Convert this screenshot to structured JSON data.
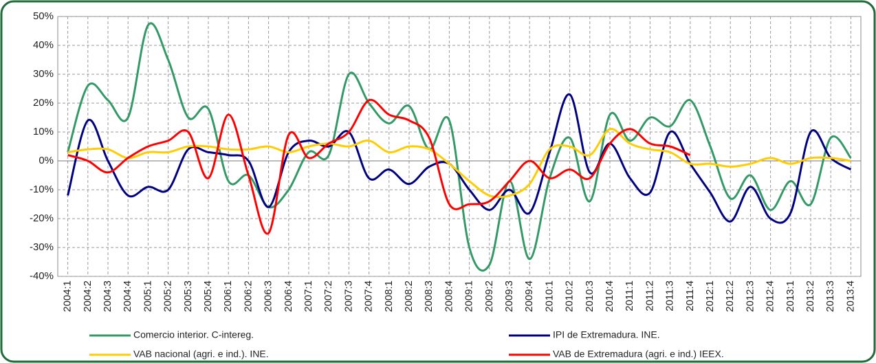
{
  "chart_data": {
    "type": "line",
    "categories": [
      "2004:1",
      "2004:2",
      "2004:3",
      "2004:4",
      "2005:1",
      "2005:2",
      "2005:3",
      "2005:4",
      "2006:1",
      "2006:2",
      "2006:3",
      "2006:4",
      "2007:1",
      "2007:2",
      "2007:3",
      "2007:4",
      "2008:1",
      "2008:2",
      "2008:3",
      "2008:4",
      "2009:1",
      "2009:2",
      "2009:3",
      "2009:4",
      "2010:1",
      "2010:2",
      "2010:3",
      "2010:4",
      "2011:1",
      "2011:2",
      "2011:3",
      "2011:4",
      "2012:1",
      "2012:2",
      "2012:3",
      "2012:4",
      "2013:1",
      "2013:2",
      "2013:3",
      "2013:4"
    ],
    "series": [
      {
        "name": "Comercio interior. C-intereg.",
        "color": "#339966",
        "values": [
          3,
          26,
          21,
          15,
          47,
          35,
          15,
          18,
          -7,
          -5,
          -16,
          -10,
          3,
          2,
          30,
          20,
          13,
          19,
          4,
          14,
          -30,
          -36,
          -7,
          -34,
          -6,
          8,
          -14,
          16,
          7,
          15,
          12,
          21,
          5,
          -13,
          -5,
          -17,
          -7,
          -15,
          8,
          1
        ]
      },
      {
        "name": "IPI de Extremadura. INE.",
        "color": "#000080",
        "values": [
          -12,
          14,
          0,
          -12,
          -9,
          -10,
          4,
          3,
          2,
          0,
          -16,
          3,
          7,
          5,
          10,
          -6,
          -3,
          -8,
          -2,
          -1,
          -10,
          -17,
          -10,
          -18,
          3,
          23,
          -4,
          6,
          -6,
          -11,
          10,
          -1,
          -11,
          -21,
          -9,
          -20,
          -18,
          10,
          1,
          -3
        ]
      },
      {
        "name": "VAB nacional (agri. e ind.). INE.",
        "color": "#ffcc00",
        "values": [
          3,
          4,
          4,
          1,
          3,
          3,
          5,
          5,
          4,
          4,
          5,
          3,
          5,
          6,
          5,
          7,
          3,
          5,
          4,
          -1,
          -7,
          -12,
          -12,
          -8,
          4,
          5,
          2,
          11,
          6,
          4,
          3,
          -1,
          -1,
          -2,
          -1,
          1,
          -1,
          1,
          1,
          0
        ]
      },
      {
        "name": "VAB de Extremadura (agri. e ind.) IEEX.",
        "color": "#ff0000",
        "values": [
          2,
          0,
          -4,
          1,
          5,
          7,
          10,
          -6,
          16,
          -5,
          -25,
          9,
          1,
          6,
          10,
          21,
          16,
          14,
          8,
          -15,
          -15,
          -14,
          -7,
          0,
          -6,
          -3,
          -6,
          6,
          11,
          6,
          5,
          2,
          null,
          null,
          null,
          null,
          null,
          null,
          null,
          null
        ]
      }
    ],
    "ylim": [
      -40,
      50
    ],
    "yticks": [
      {
        "value": -40,
        "label": "-40%"
      },
      {
        "value": -30,
        "label": "-30%"
      },
      {
        "value": -20,
        "label": "-20%"
      },
      {
        "value": -10,
        "label": "-10%"
      },
      {
        "value": 0,
        "label": "0%"
      },
      {
        "value": 10,
        "label": "10%"
      },
      {
        "value": 20,
        "label": "20%"
      },
      {
        "value": 30,
        "label": "30%"
      },
      {
        "value": 40,
        "label": "40%"
      },
      {
        "value": 50,
        "label": "50%"
      }
    ],
    "grid": true
  }
}
